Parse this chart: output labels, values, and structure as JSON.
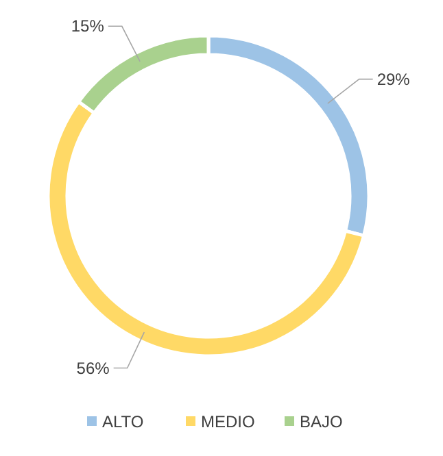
{
  "chart_data": {
    "type": "donut",
    "categories": [
      "ALTO",
      "MEDIO",
      "BAJO"
    ],
    "values": [
      29,
      56,
      15
    ],
    "colors": [
      "#9dc3e6",
      "#ffd966",
      "#a9d18e"
    ],
    "value_labels": [
      "29%",
      "56%",
      "15%"
    ],
    "legend": "bottom"
  }
}
